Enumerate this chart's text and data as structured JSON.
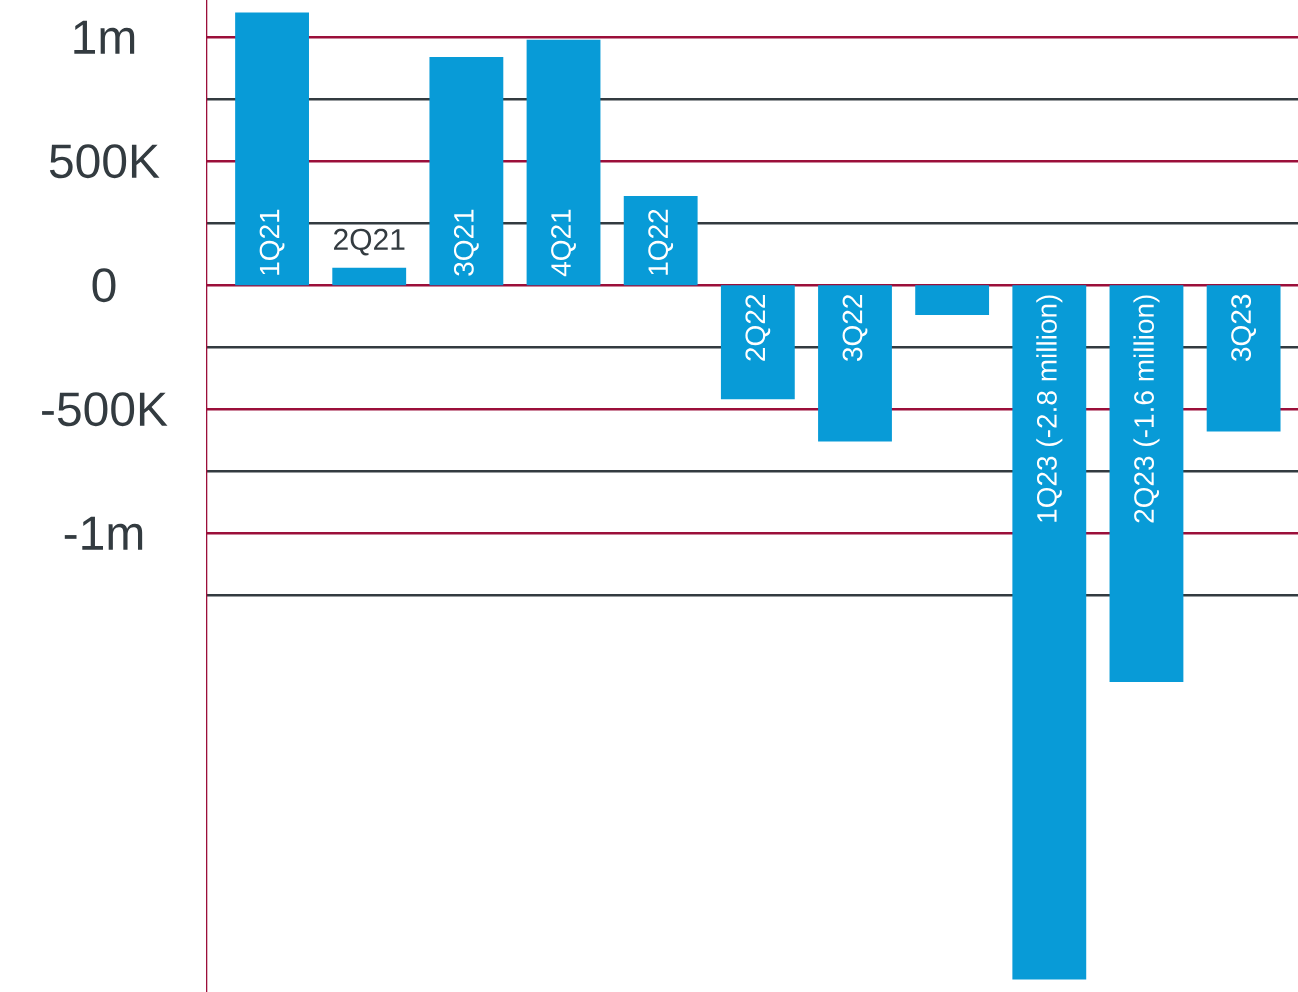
{
  "chart_data": {
    "type": "bar",
    "categories": [
      "1Q21",
      "2Q21",
      "3Q21",
      "4Q21",
      "1Q22",
      "2Q22",
      "3Q22",
      null,
      "1Q23 (-2.8 million)",
      "2Q23 (-1.6 million)",
      "3Q23"
    ],
    "values": [
      1100000,
      70000,
      920000,
      990000,
      360000,
      -460000,
      -630000,
      -120000,
      -2800000,
      -1600000,
      -590000
    ],
    "color": "#089bd7",
    "ylim": [
      -2850000,
      1150000
    ],
    "yticks": [
      {
        "value": 1000000,
        "label": "1m"
      },
      {
        "value": 750000,
        "label": null
      },
      {
        "value": 500000,
        "label": "500K"
      },
      {
        "value": 250000,
        "label": null
      },
      0,
      {
        "value": -250000,
        "label": null
      },
      {
        "value": -500000,
        "label": "-500K"
      },
      {
        "value": -750000,
        "label": null
      },
      {
        "value": -1000000,
        "label": "-1m"
      },
      {
        "value": -1250000,
        "label": null
      }
    ],
    "grid": "y"
  }
}
